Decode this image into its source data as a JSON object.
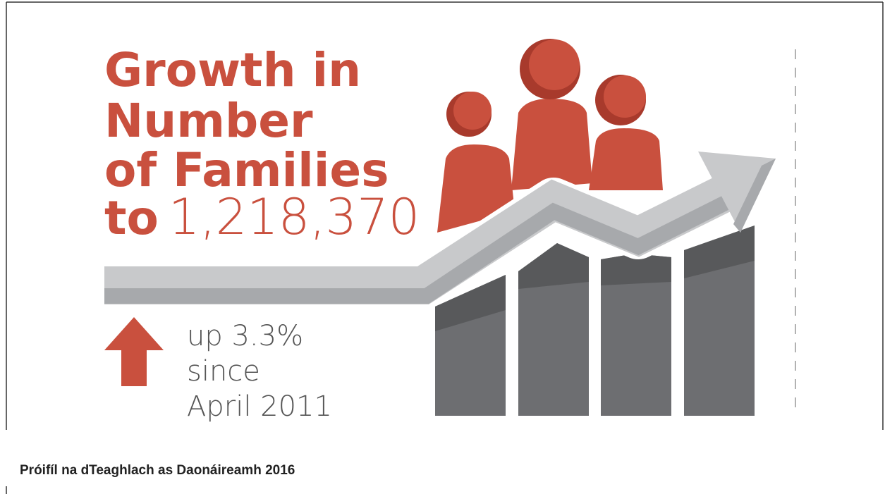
{
  "infographic": {
    "title_lines": [
      "Growth in",
      "Number",
      "of Families",
      "to"
    ],
    "total": "1,218,370",
    "change_lines": [
      "up 3.3%",
      "since",
      "April 2011"
    ]
  },
  "caption": "Próifíl na dTeaghlach as Daonáireamh 2016"
}
